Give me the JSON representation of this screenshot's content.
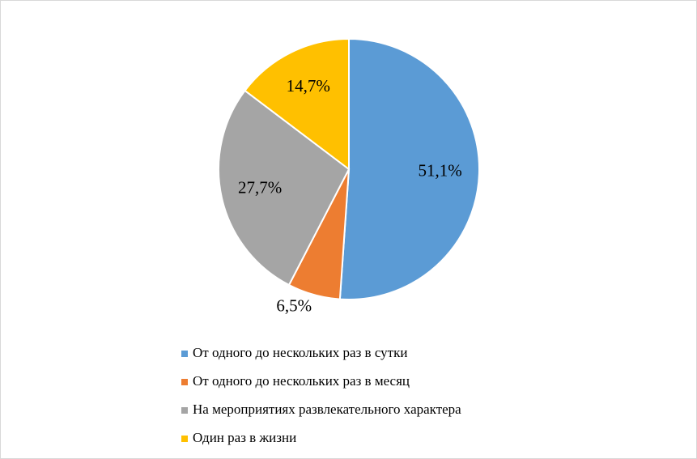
{
  "chart_data": {
    "type": "pie",
    "categories": [
      "От одного до нескольких раз в сутки",
      "От одного до нескольких раз в месяц",
      "На мероприятиях развлекательного характера",
      "Один раз в жизни"
    ],
    "values": [
      51.1,
      6.5,
      27.7,
      14.7
    ],
    "value_labels": [
      "51,1%",
      "6,5%",
      "27,7%",
      "14,7%"
    ],
    "colors": [
      "#5b9bd5",
      "#ed7d31",
      "#a5a5a5",
      "#ffc000"
    ],
    "legend": "bottom"
  }
}
